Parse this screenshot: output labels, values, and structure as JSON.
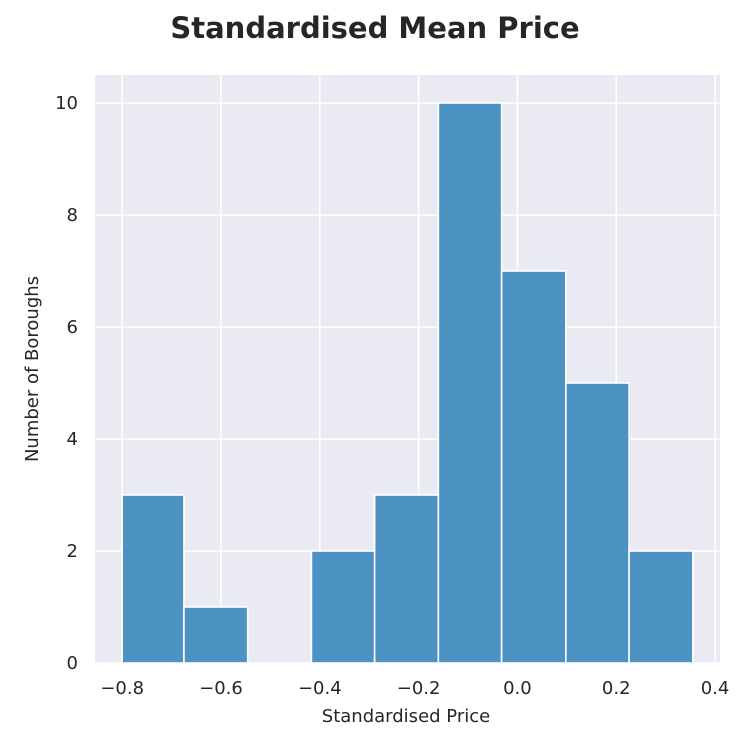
{
  "chart_data": {
    "type": "bar",
    "title": "Standardised Mean Price",
    "xlabel": "Standardised Price",
    "ylabel": "Number of Boroughs",
    "bin_edges": [
      -0.8,
      -0.675,
      -0.546,
      -0.417,
      -0.289,
      -0.16,
      -0.032,
      0.098,
      0.226,
      0.355
    ],
    "values": [
      3,
      1,
      0,
      2,
      3,
      10,
      7,
      5,
      2
    ],
    "xlim": [
      -0.855,
      0.41
    ],
    "ylim": [
      0,
      10.5
    ],
    "xticks": [
      -0.8,
      -0.6,
      -0.4,
      -0.2,
      0.0,
      0.2,
      0.4
    ],
    "xtick_labels": [
      "−0.8",
      "−0.6",
      "−0.4",
      "−0.2",
      "0.0",
      "0.2",
      "0.4"
    ],
    "yticks": [
      0,
      2,
      4,
      6,
      8,
      10
    ],
    "ytick_labels": [
      "0",
      "2",
      "4",
      "6",
      "8",
      "10"
    ],
    "grid": true,
    "colors": {
      "bar": "#4C92C3",
      "plot_background": "#EAEAF2",
      "grid": "#FFFFFF",
      "text": "#262626"
    }
  }
}
